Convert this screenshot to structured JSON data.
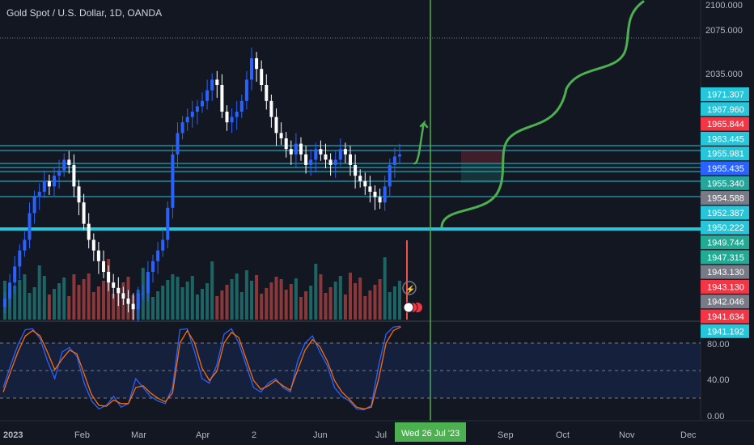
{
  "header": {
    "title": "Gold Spot / U.S. Dollar, 1D, OANDA"
  },
  "crosshair": {
    "date_label": "Wed 26 Jul '23"
  },
  "colors": {
    "background": "#131722",
    "up": "#2962ff",
    "down": "#ffffff",
    "hline": "#26c6da",
    "crosshair": "#4caf50",
    "drawing": "#4caf50",
    "stoch_k": "#2962ff",
    "stoch_d": "#ff6d00",
    "vol_up": "#26a69a",
    "vol_down": "#ef5350"
  },
  "chart_data": [
    {
      "type": "candlestick",
      "title": "Gold Spot / U.S. Dollar, 1D, OANDA",
      "x_ticks": [
        "2023",
        "Feb",
        "Mar",
        "Apr",
        "2",
        "Jun",
        "Jul",
        "Sep",
        "Oct",
        "Nov",
        "Dec"
      ],
      "y_ticks": [
        "2100.000",
        "2075.000",
        "2035.000"
      ],
      "price_scale_labels": [
        {
          "value": "1971.307",
          "color": "#26c6da"
        },
        {
          "value": "1967.960",
          "color": "#26c6da"
        },
        {
          "value": "1965.844",
          "color": "#f23645"
        },
        {
          "value": "1963.445",
          "color": "#26c6da"
        },
        {
          "value": "1955.981",
          "color": "#26c6da"
        },
        {
          "value": "1955.435",
          "color": "#2962ff"
        },
        {
          "value": "1955.340",
          "color": "#26a69a"
        },
        {
          "value": "1954.588",
          "color": "#787b86"
        },
        {
          "value": "1952.387",
          "color": "#26c6da"
        },
        {
          "value": "1950.222",
          "color": "#26c6da"
        },
        {
          "value": "1949.744",
          "color": "#22ab94"
        },
        {
          "value": "1947.315",
          "color": "#22ab94"
        },
        {
          "value": "1943.130",
          "color": "#787b86"
        },
        {
          "value": "1943.130",
          "color": "#f23645"
        },
        {
          "value": "1942.046",
          "color": "#787b86"
        },
        {
          "value": "1941.634",
          "color": "#f23645"
        },
        {
          "value": "1941.192",
          "color": "#26c6da"
        }
      ],
      "close_series": [
        1825,
        1840,
        1855,
        1870,
        1880,
        1905,
        1920,
        1925,
        1935,
        1930,
        1940,
        1945,
        1955,
        1950,
        1930,
        1915,
        1895,
        1880,
        1870,
        1860,
        1850,
        1840,
        1835,
        1830,
        1825,
        1820,
        1815,
        1830,
        1830,
        1850,
        1860,
        1870,
        1880,
        1910,
        1960,
        1980,
        1990,
        1995,
        2000,
        2005,
        2010,
        2020,
        2030,
        2025,
        2000,
        1990,
        1995,
        2000,
        2010,
        2030,
        2050,
        2040,
        2025,
        2010,
        1995,
        1980,
        1975,
        1965,
        1960,
        1970,
        1960,
        1950,
        1955,
        1965,
        1960,
        1955,
        1950,
        1955,
        1965,
        1960,
        1950,
        1940,
        1935,
        1930,
        1925,
        1920,
        1915,
        1930,
        1950,
        1958,
        1960
      ]
    },
    {
      "type": "bar",
      "title": "Volume",
      "values": "decorative histogram beneath price"
    },
    {
      "type": "line",
      "title": "Stochastic",
      "y_ticks": [
        "80.00",
        "40.00",
        "0.00"
      ],
      "ylim": [
        0,
        100
      ],
      "series": [
        {
          "values": [
            30,
            55,
            78,
            95,
            96,
            85,
            60,
            40,
            70,
            75,
            65,
            35,
            15,
            6,
            10,
            20,
            8,
            12,
            40,
            30,
            20,
            15,
            12,
            30,
            95,
            96,
            70,
            40,
            35,
            55,
            90,
            96,
            80,
            55,
            30,
            25,
            35,
            40,
            30,
            25,
            60,
            80,
            88,
            70,
            55,
            30,
            20,
            15,
            6,
            5,
            10,
            55,
            90,
            98,
            99
          ]
        },
        {
          "values": [
            25,
            48,
            70,
            88,
            94,
            88,
            70,
            50,
            62,
            72,
            68,
            45,
            22,
            10,
            9,
            16,
            12,
            12,
            30,
            32,
            24,
            18,
            14,
            24,
            80,
            94,
            80,
            52,
            38,
            48,
            80,
            92,
            86,
            62,
            38,
            28,
            32,
            38,
            32,
            27,
            50,
            72,
            84,
            76,
            60,
            38,
            25,
            17,
            8,
            6,
            8,
            40,
            80,
            94,
            98
          ]
        }
      ]
    }
  ]
}
